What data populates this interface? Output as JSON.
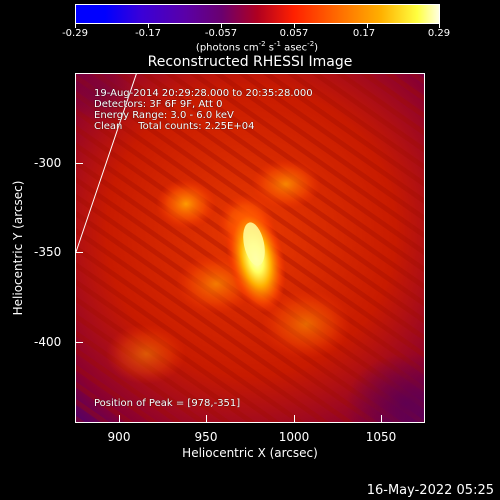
{
  "colorbar": {
    "tick_labels": [
      "-0.29",
      "-0.17",
      "-0.057",
      "0.057",
      "0.17",
      "0.29"
    ],
    "units_prefix": "(photons cm",
    "units_exp1": "-2",
    "units_mid1": " s",
    "units_exp2": "-1",
    "units_mid2": " asec",
    "units_exp3": "-2",
    "units_suffix": ")"
  },
  "title": "Reconstructed RHESSI Image",
  "info": {
    "line1": "19-Aug-2014 20:29:28.000 to 20:35:28.000",
    "line2": "Detectors: 3F 6F 9F, Att 0",
    "line3": "Energy Range: 3.0 - 6.0 keV",
    "line4": "Clean     Total counts: 2.25E+04",
    "peak": "Position of Peak = [978,-351]"
  },
  "axes": {
    "xlabel": "Heliocentric X (arcsec)",
    "ylabel": "Heliocentric Y (arcsec)",
    "xticks": [
      "900",
      "950",
      "1000",
      "1050"
    ],
    "yticks": [
      "-300",
      "-350",
      "-400"
    ]
  },
  "footer": "16-May-2022 05:25"
}
